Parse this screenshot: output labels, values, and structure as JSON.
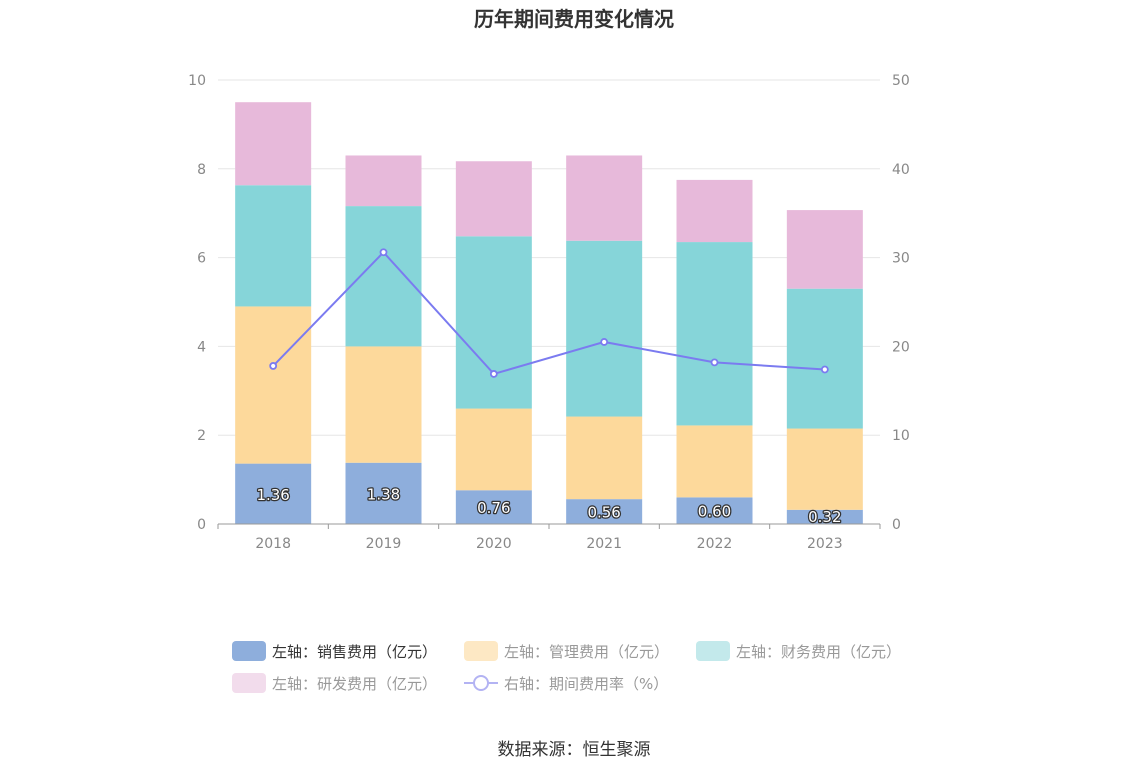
{
  "chart_data": {
    "type": "bar",
    "stacked": true,
    "title": "历年期间费用变化情况",
    "categories": [
      "2018",
      "2019",
      "2020",
      "2021",
      "2022",
      "2023"
    ],
    "y_left": {
      "ticks": [
        "0",
        "2",
        "4",
        "6",
        "8",
        "10"
      ],
      "ylim": [
        0,
        10
      ]
    },
    "y_right": {
      "ticks": [
        "0",
        "10",
        "20",
        "30",
        "40",
        "50"
      ],
      "ylim": [
        0,
        50
      ]
    },
    "grid": true,
    "series": [
      {
        "name": "左轴：销售费用（亿元）",
        "type": "bar",
        "axis": "left",
        "color": "#8eaedc",
        "values": [
          1.36,
          1.38,
          0.76,
          0.56,
          0.6,
          0.32
        ],
        "labels": [
          "1.36",
          "1.38",
          "0.76",
          "0.56",
          "0.60",
          "0.32"
        ]
      },
      {
        "name": "左轴：管理费用（亿元）",
        "type": "bar",
        "axis": "left",
        "color": "#fdd99b",
        "values": [
          3.54,
          2.62,
          1.84,
          1.86,
          1.62,
          1.83
        ]
      },
      {
        "name": "左轴：财务费用（亿元）",
        "type": "bar",
        "axis": "left",
        "color": "#86d5d9",
        "values": [
          2.73,
          3.16,
          3.88,
          3.96,
          4.13,
          3.15
        ]
      },
      {
        "name": "左轴：研发费用（亿元）",
        "type": "bar",
        "axis": "left",
        "color": "#e7b9da",
        "values": [
          1.87,
          1.14,
          1.69,
          1.92,
          1.4,
          1.77
        ]
      },
      {
        "name": "右轴：期间费用率（%）",
        "type": "line",
        "axis": "right",
        "color": "#7b7bf0",
        "values": [
          17.8,
          30.6,
          16.9,
          20.5,
          18.2,
          17.4
        ]
      }
    ],
    "legend_position": "bottom"
  },
  "legend": [
    {
      "label": "左轴：销售费用（亿元）",
      "color": "#8eaedc",
      "kind": "bar",
      "active": true
    },
    {
      "label": "左轴：管理费用（亿元）",
      "color": "#fde8c4",
      "kind": "bar",
      "active": false
    },
    {
      "label": "左轴：财务费用（亿元）",
      "color": "#c3e9eb",
      "kind": "bar",
      "active": false
    },
    {
      "label": "左轴：研发费用（亿元）",
      "color": "#f2dcec",
      "kind": "bar",
      "active": false
    },
    {
      "label": "右轴：期间费用率（%）",
      "color": "#b3b3f3",
      "kind": "line",
      "active": false
    }
  ],
  "source": "数据来源：恒生聚源"
}
